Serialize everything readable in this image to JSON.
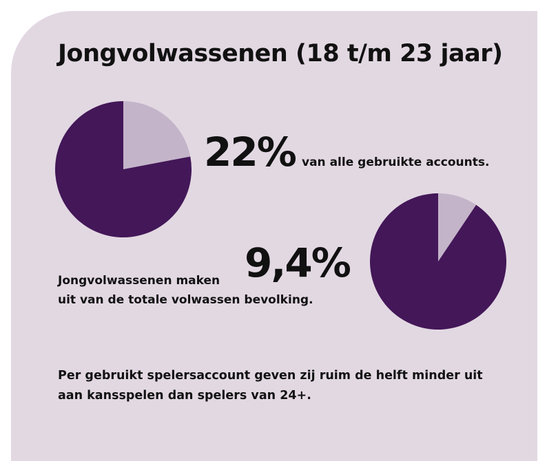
{
  "heading": "Jongvolwassenen (18 t/m 23 jaar)",
  "colors": {
    "card": "#e2d8e2",
    "pie_main": "#431758",
    "pie_slice": "#c4b4c9"
  },
  "stat_accounts": {
    "value_label": "22%",
    "text": "van alle gebruikte accounts."
  },
  "stat_population": {
    "value_label": "9,4%",
    "line1": "Jongvolwassenen maken",
    "line2": "uit van de totale volwassen bevolking."
  },
  "note": {
    "line1": "Per gebruikt spelersaccount geven zij ruim de helft minder uit",
    "line2": "aan kansspelen dan spelers van 24+."
  },
  "chart_data": [
    {
      "type": "pie",
      "slices": [
        {
          "value": 22,
          "color": "#c4b4c9"
        },
        {
          "value": 78,
          "color": "#431758"
        }
      ]
    },
    {
      "type": "pie",
      "slices": [
        {
          "value": 9.4,
          "color": "#c4b4c9"
        },
        {
          "value": 90.6,
          "color": "#431758"
        }
      ]
    }
  ]
}
